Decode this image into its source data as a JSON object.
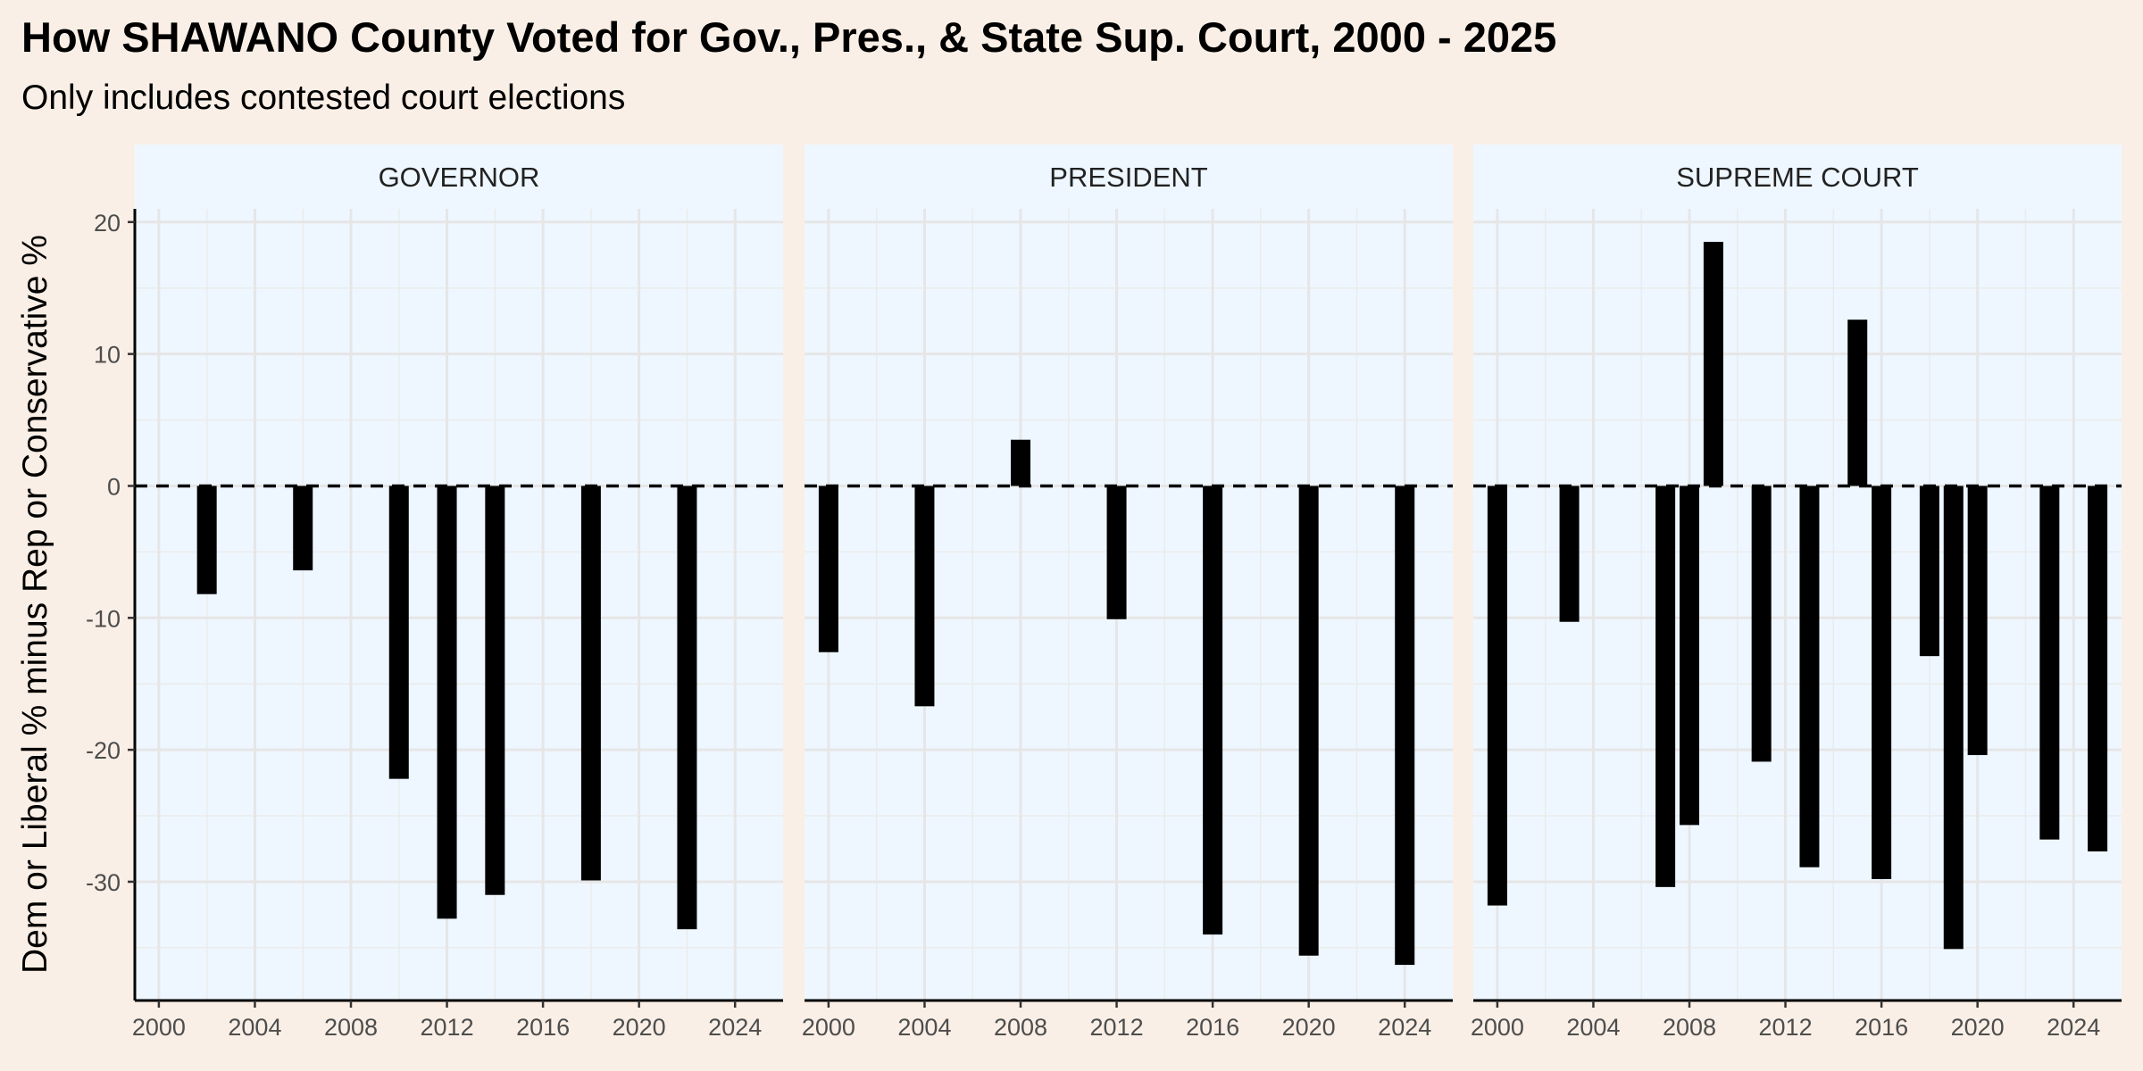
{
  "title": "How SHAWANO County Voted for Gov., Pres., & State Sup. Court, 2000 - 2025",
  "subtitle": "Only includes contested court elections",
  "chart_data": {
    "type": "bar",
    "title": "How SHAWANO County Voted for Gov., Pres., & State Sup. Court, 2000 - 2025",
    "subtitle": "Only includes contested court elections",
    "xlabel": "",
    "ylabel": "Dem or Liberal % minus Rep or Conservative %",
    "xlim": [
      1999,
      2026
    ],
    "ylim": [
      -39,
      21
    ],
    "x_ticks": [
      2000,
      2004,
      2008,
      2012,
      2016,
      2020,
      2024
    ],
    "y_ticks": [
      -30,
      -20,
      -10,
      0,
      10,
      20
    ],
    "y_tick_labels": [
      "-30",
      "-20",
      "-10",
      "0",
      "10",
      "20"
    ],
    "reference_line": {
      "y": 0,
      "style": "dashed"
    },
    "grid": true,
    "bar_color": "#000000",
    "panel_color": "#eef7ff",
    "strip_color": "#eef7ff",
    "background_color": "#faefe6",
    "panels": [
      {
        "name": "GOVERNOR",
        "x": [
          2002,
          2006,
          2010,
          2012,
          2014,
          2018,
          2022
        ],
        "values": [
          -8.2,
          -6.4,
          -22.2,
          -32.8,
          -31.0,
          -29.9,
          -33.6
        ]
      },
      {
        "name": "PRESIDENT",
        "x": [
          2000,
          2004,
          2008,
          2012,
          2016,
          2020,
          2024
        ],
        "values": [
          -12.6,
          -16.7,
          3.5,
          -10.1,
          -34.0,
          -35.6,
          -36.3
        ]
      },
      {
        "name": "SUPREME COURT",
        "x": [
          2000,
          2003,
          2007,
          2008,
          2009,
          2011,
          2013,
          2015,
          2016,
          2018,
          2019,
          2020,
          2023,
          2025
        ],
        "values": [
          -31.8,
          -10.3,
          -30.4,
          -25.7,
          18.5,
          -20.9,
          -28.9,
          12.6,
          -29.8,
          -12.9,
          -35.1,
          -20.4,
          -26.8,
          -27.7
        ]
      }
    ]
  }
}
